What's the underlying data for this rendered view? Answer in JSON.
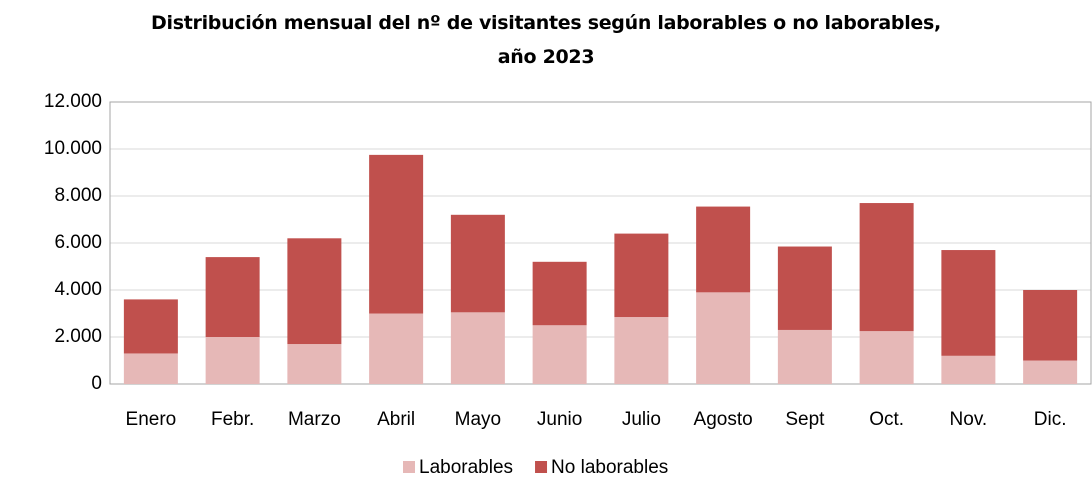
{
  "chart_data": {
    "type": "stacked_bar",
    "title": "Distribución mensual del nº de visitantes según laborables o no laborables, año 2023",
    "categories": [
      "Enero",
      "Febr.",
      "Marzo",
      "Abril",
      "Mayo",
      "Junio",
      "Julio",
      "Agosto",
      "Sept",
      "Oct.",
      "Nov.",
      "Dic."
    ],
    "series": [
      {
        "name": "Laborables",
        "color": "#e6b8b7",
        "values": [
          1300,
          2000,
          1700,
          3000,
          3050,
          2500,
          2850,
          3900,
          2300,
          2250,
          1200,
          1000
        ]
      },
      {
        "name": "No laborables",
        "color": "#c0504d",
        "values": [
          2300,
          3400,
          4500,
          6750,
          4150,
          2700,
          3550,
          3650,
          3550,
          5450,
          4500,
          3000
        ]
      }
    ],
    "ylim": [
      0,
      12000
    ],
    "yticks": [
      0,
      {
        "value": 2000,
        "label": "2.000"
      },
      {
        "value": 4000,
        "label": "4.000"
      },
      {
        "value": 6000,
        "label": "6.000"
      },
      {
        "value": 8000,
        "label": "8.000"
      },
      {
        "value": 10000,
        "label": "10.000"
      },
      {
        "value": 12000,
        "label": "12.000"
      }
    ],
    "grid": true,
    "legend": "bottom"
  }
}
